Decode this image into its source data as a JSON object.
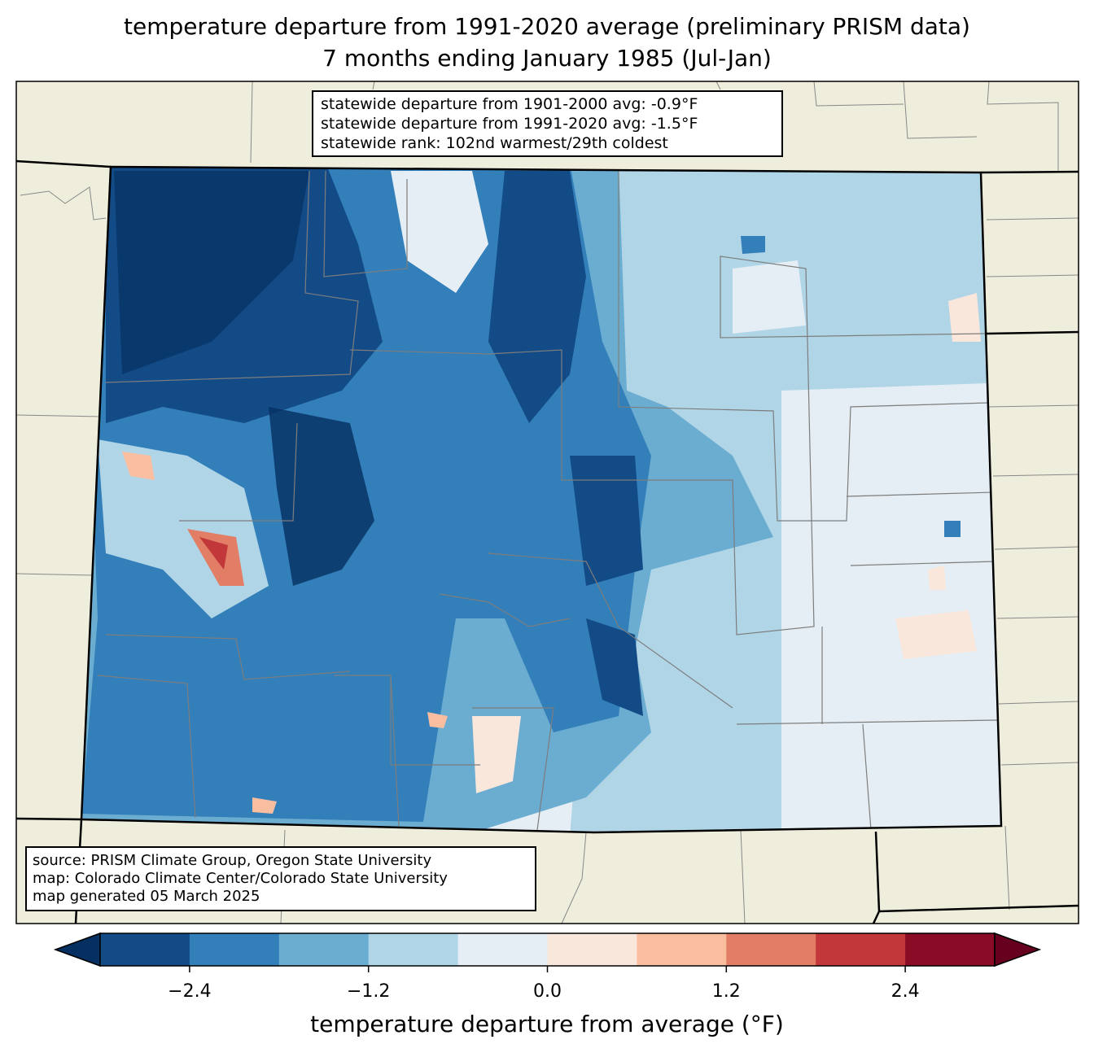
{
  "title": {
    "line1": "temperature departure from 1991-2020 average (preliminary PRISM data)",
    "line2": "7 months ending January 1985 (Jul-Jan)"
  },
  "stats": {
    "line1": "statewide departure from 1901-2000 avg: -0.9°F",
    "line2": "statewide departure from 1991-2020 avg: -1.5°F",
    "line3": "statewide rank: 102nd warmest/29th coldest"
  },
  "source": {
    "line1": "source: PRISM Climate Group, Oregon State University",
    "line2": "map: Colorado Climate Center/Colorado State University",
    "line3": "map generated 05 March 2025"
  },
  "colorbar": {
    "label": "temperature departure from average (°F)",
    "min": -3.0,
    "max": 3.0,
    "step": 0.6,
    "ticks": [
      {
        "value": -2.4,
        "label": "−2.4"
      },
      {
        "value": -1.2,
        "label": "−1.2"
      },
      {
        "value": 0.0,
        "label": "0.0"
      },
      {
        "value": 1.2,
        "label": "1.2"
      },
      {
        "value": 2.4,
        "label": "2.4"
      }
    ],
    "colors": [
      "#134b87",
      "#327fba",
      "#6bacd1",
      "#b0d5e7",
      "#e4eef4",
      "#fae7dc",
      "#f9bda0",
      "#e27e65",
      "#c1373a",
      "#8a0b25"
    ],
    "under_color": "#053061",
    "over_color": "#67001f"
  },
  "map_colors": {
    "land": "#efeedc",
    "base": "#b0d5e7"
  }
}
